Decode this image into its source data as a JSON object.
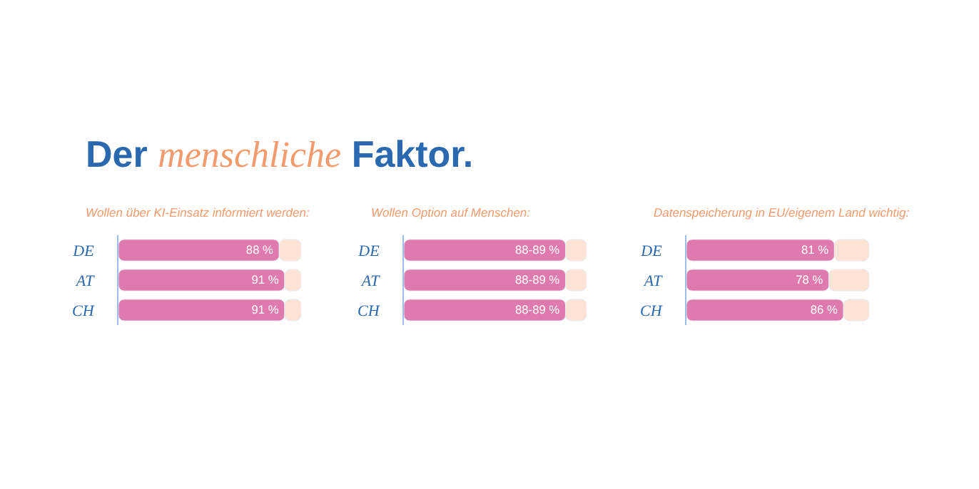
{
  "chart_data": [
    {
      "type": "bar",
      "orientation": "horizontal",
      "stacked": true,
      "title": "Der menschliche Faktor.",
      "subtitle": "Wollen über KI-Einsatz informiert werden:",
      "categories": [
        "DE",
        "AT",
        "CH"
      ],
      "xlim": [
        0,
        100
      ],
      "tick_labels": "y",
      "series": [
        {
          "color": "#df7aae",
          "values": [
            88,
            91,
            91
          ],
          "value_labels": [
            "88 %",
            "91 %",
            "91 %"
          ]
        },
        {
          "color": "#fde3d5",
          "values": [
            12,
            9,
            9
          ]
        }
      ]
    },
    {
      "type": "bar",
      "orientation": "horizontal",
      "stacked": true,
      "subtitle": "Wollen Option auf Menschen:",
      "categories": [
        "DE",
        "AT",
        "CH"
      ],
      "xlim": [
        0,
        100
      ],
      "tick_labels": "y",
      "series": [
        {
          "color": "#df7aae",
          "values": [
            88.5,
            88.5,
            88.5
          ],
          "value_labels": [
            "88-89 %",
            "88-89 %",
            "88-89 %"
          ]
        },
        {
          "color": "#fde3d5",
          "values": [
            11.5,
            11.5,
            11.5
          ]
        }
      ]
    },
    {
      "type": "bar",
      "orientation": "horizontal",
      "stacked": true,
      "subtitle": "Datenspeicherung in EU/eigenem Land wichtig:",
      "categories": [
        "DE",
        "AT",
        "CH"
      ],
      "xlim": [
        0,
        100
      ],
      "tick_labels": "y",
      "series": [
        {
          "color": "#df7aae",
          "values": [
            81,
            78,
            86
          ],
          "value_labels": [
            "81 %",
            "78 %",
            "86 %"
          ]
        },
        {
          "color": "#fde3d5",
          "values": [
            19,
            22,
            14
          ]
        }
      ]
    }
  ]
}
